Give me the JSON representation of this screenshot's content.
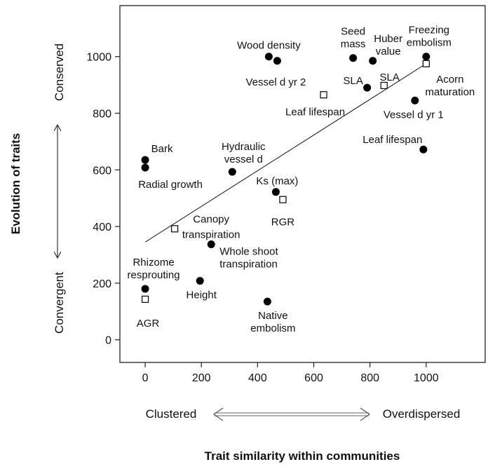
{
  "chart_data": {
    "type": "scatter",
    "title": "",
    "xlabel": "Trait similarity within communities",
    "ylabel": "Evolution of traits",
    "xlim": [
      -90,
      1210
    ],
    "ylim": [
      -80,
      1180
    ],
    "x_ticks": [
      0,
      200,
      400,
      600,
      800,
      1000
    ],
    "y_ticks": [
      0,
      200,
      400,
      600,
      800,
      1000
    ],
    "x_scale_labels": {
      "low": "Clustered",
      "high": "Overdispersed"
    },
    "y_scale_labels": {
      "low": "Convergent",
      "high": "Conserved"
    },
    "grid": false,
    "legend": "none",
    "trend_line": {
      "x": [
        0,
        1000
      ],
      "y": [
        345,
        975
      ]
    },
    "series": [
      {
        "marker": "filled-circle",
        "points": [
          {
            "x": 440,
            "y": 1000,
            "label": "Wood density"
          },
          {
            "x": 470,
            "y": 985,
            "label": "Vessel d yr 2"
          },
          {
            "x": 740,
            "y": 995,
            "label": "Seed mass"
          },
          {
            "x": 810,
            "y": 985,
            "label": "Huber value"
          },
          {
            "x": 790,
            "y": 890,
            "label": "SLA"
          },
          {
            "x": 1000,
            "y": 1000,
            "label": "Freezing embolism"
          },
          {
            "x": 960,
            "y": 845,
            "label": "Vessel d yr 1"
          },
          {
            "x": 990,
            "y": 672,
            "label": "Leaf lifespan"
          },
          {
            "x": 0,
            "y": 635,
            "label": "Bark"
          },
          {
            "x": 0,
            "y": 608,
            "label": "Radial growth"
          },
          {
            "x": 310,
            "y": 593,
            "label": "Hydraulic vessel d"
          },
          {
            "x": 465,
            "y": 522,
            "label": "Ks (max)"
          },
          {
            "x": 235,
            "y": 337,
            "label": "Whole shoot transpiration"
          },
          {
            "x": 0,
            "y": 180,
            "label": "Rhizome resprouting"
          },
          {
            "x": 195,
            "y": 208,
            "label": "Height"
          },
          {
            "x": 435,
            "y": 135,
            "label": "Native embolism"
          }
        ]
      },
      {
        "marker": "open-square",
        "points": [
          {
            "x": 635,
            "y": 865,
            "label": "Leaf lifespan"
          },
          {
            "x": 850,
            "y": 898,
            "label": "SLA"
          },
          {
            "x": 1000,
            "y": 975,
            "label": "Acorn maturation"
          },
          {
            "x": 490,
            "y": 495,
            "label": "RGR"
          },
          {
            "x": 105,
            "y": 392,
            "label": "Canopy transpiration"
          },
          {
            "x": 0,
            "y": 143,
            "label": "AGR"
          }
        ]
      }
    ]
  }
}
